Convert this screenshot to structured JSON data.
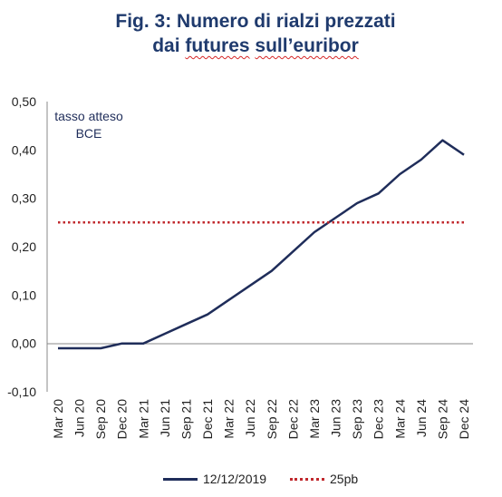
{
  "title": {
    "line1": "Fig. 3: Numero di rialzi prezzati",
    "line2_pre": "dai ",
    "line2_underlined_1": "futures",
    "line2_mid": " ",
    "line2_underlined_2": "sull’euribor"
  },
  "annotation": {
    "line1": "tasso atteso",
    "line2": "BCE"
  },
  "chart_data": {
    "type": "line",
    "categories": [
      "Mar 20",
      "Jun 20",
      "Sep 20",
      "Dec 20",
      "Mar 21",
      "Jun 21",
      "Sep 21",
      "Dec 21",
      "Mar 22",
      "Jun 22",
      "Sep 22",
      "Dec 22",
      "Mar 23",
      "Jun 23",
      "Sep 23",
      "Dec 23",
      "Mar 24",
      "Jun 24",
      "Sep 24",
      "Dec 24"
    ],
    "series": [
      {
        "name": "12/12/2019",
        "color": "#1f2d5a",
        "style": "solid",
        "values": [
          -0.01,
          -0.01,
          -0.01,
          0.0,
          0.0,
          0.02,
          0.04,
          0.06,
          0.09,
          0.12,
          0.15,
          0.19,
          0.23,
          0.26,
          0.29,
          0.31,
          0.35,
          0.38,
          0.42,
          0.39
        ]
      },
      {
        "name": "25pb",
        "color": "#c0282d",
        "style": "dotted",
        "values": [
          0.25,
          0.25,
          0.25,
          0.25,
          0.25,
          0.25,
          0.25,
          0.25,
          0.25,
          0.25,
          0.25,
          0.25,
          0.25,
          0.25,
          0.25,
          0.25,
          0.25,
          0.25,
          0.25,
          0.25
        ]
      }
    ],
    "yticks": [
      "0,50",
      "0,40",
      "0,30",
      "0,20",
      "0,10",
      "0,00",
      "-0,10"
    ],
    "ytick_values": [
      0.5,
      0.4,
      0.3,
      0.2,
      0.1,
      0.0,
      -0.1
    ],
    "ylim": [
      -0.1,
      0.5
    ],
    "grid": false,
    "legend_position": "bottom"
  }
}
